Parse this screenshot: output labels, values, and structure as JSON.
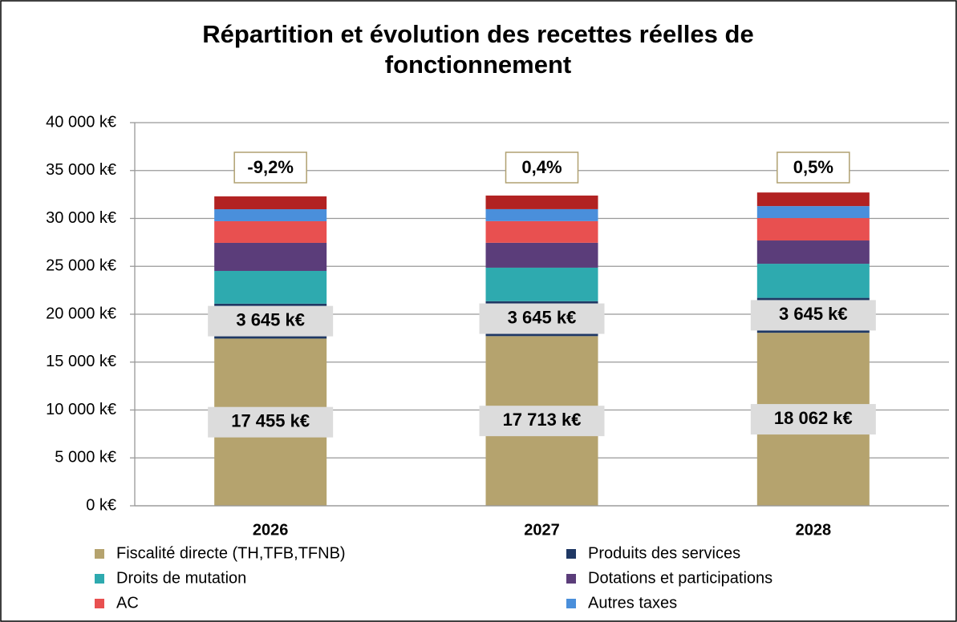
{
  "chart_data": {
    "type": "stacked_bar",
    "title": "Répartition et évolution des recettes réelles de fonctionnement",
    "categories": [
      "2026",
      "2027",
      "2028"
    ],
    "annotations": [
      "-9,2%",
      "0,4%",
      "0,5%"
    ],
    "series": [
      {
        "name": "Fiscalité directe (TH,TFB,TFNB)",
        "color": "#b5a36e",
        "values": [
          17455,
          17713,
          18062
        ],
        "value_labels": [
          "17 455 k€",
          "17 713 k€",
          "18 062 k€"
        ]
      },
      {
        "name": "Produits des services",
        "color": "#1f3864",
        "values": [
          3645,
          3645,
          3645
        ],
        "value_labels": [
          "3 645 k€",
          "3 645 k€",
          "3 645 k€"
        ]
      },
      {
        "name": "Droits de mutation",
        "color": "#2eaaaf",
        "values": [
          3420,
          3500,
          3560
        ]
      },
      {
        "name": "Dotations et participations",
        "color": "#5b3d7a",
        "values": [
          2930,
          2600,
          2430
        ]
      },
      {
        "name": "AC",
        "color": "#e85050",
        "values": [
          2260,
          2260,
          2340
        ]
      },
      {
        "name": "Autres taxes",
        "color": "#4a8fdb",
        "values": [
          1250,
          1250,
          1250
        ]
      },
      {
        "color": "#b22222",
        "values": [
          1340,
          1420,
          1420
        ]
      }
    ],
    "ylim": [
      0,
      40000
    ],
    "yticks": [
      {
        "value": 0,
        "label": "0 k€"
      },
      {
        "value": 5000,
        "label": "5 000 k€"
      },
      {
        "value": 10000,
        "label": "10 000 k€"
      },
      {
        "value": 15000,
        "label": "15 000 k€"
      },
      {
        "value": 20000,
        "label": "20 000 k€"
      },
      {
        "value": 25000,
        "label": "25 000 k€"
      },
      {
        "value": 30000,
        "label": "30 000 k€"
      },
      {
        "value": 35000,
        "label": "35 000 k€"
      },
      {
        "value": 40000,
        "label": "40 000 k€"
      }
    ],
    "grid": true
  }
}
